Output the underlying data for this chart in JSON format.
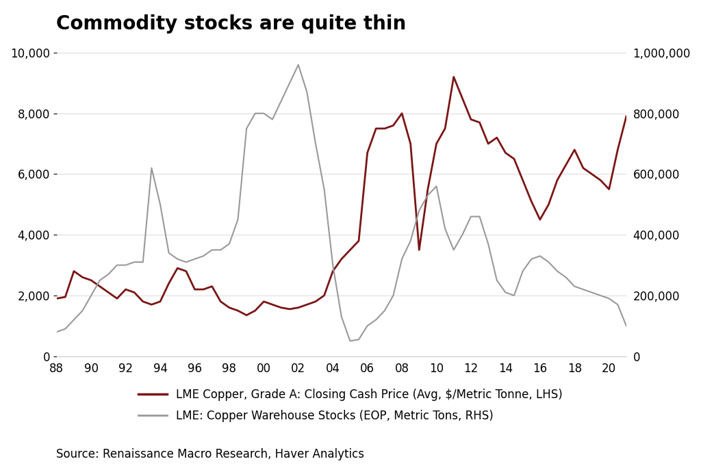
{
  "title": "Commodity stocks are quite thin",
  "source": "Source: Renaissance Macro Research, Haver Analytics",
  "legend_lhs": "LME Copper, Grade A: Closing Cash Price (Avg, $/Metric Tonne, LHS)",
  "legend_rhs": "LME: Copper Warehouse Stocks (EOP, Metric Tons, RHS)",
  "lhs_color": "#7B1515",
  "rhs_color": "#999999",
  "lhs_ylim": [
    0,
    10000
  ],
  "rhs_ylim": [
    0,
    1000000
  ],
  "lhs_yticks": [
    0,
    2000,
    4000,
    6000,
    8000,
    10000
  ],
  "rhs_yticks": [
    0,
    200000,
    400000,
    600000,
    800000,
    1000000
  ],
  "xlim": [
    1988,
    2021
  ],
  "xticks": [
    88,
    90,
    92,
    94,
    96,
    98,
    100,
    102,
    104,
    106,
    108,
    110,
    112,
    114,
    116,
    118,
    120
  ],
  "xtick_labels": [
    "88",
    "90",
    "92",
    "94",
    "96",
    "98",
    "00",
    "02",
    "04",
    "06",
    "08",
    "10",
    "12",
    "14",
    "16",
    "18",
    "20"
  ],
  "copper_price": {
    "years": [
      1988.0,
      1988.5,
      1989.0,
      1989.5,
      1990.0,
      1990.5,
      1991.0,
      1991.5,
      1992.0,
      1992.5,
      1993.0,
      1993.5,
      1994.0,
      1994.5,
      1995.0,
      1995.5,
      1996.0,
      1996.5,
      1997.0,
      1997.5,
      1998.0,
      1998.5,
      1999.0,
      1999.5,
      2000.0,
      2000.5,
      2001.0,
      2001.5,
      2002.0,
      2002.5,
      2003.0,
      2003.5,
      2004.0,
      2004.5,
      2005.0,
      2005.5,
      2006.0,
      2006.5,
      2007.0,
      2007.5,
      2008.0,
      2008.5,
      2009.0,
      2009.5,
      2010.0,
      2010.5,
      2011.0,
      2011.5,
      2012.0,
      2012.5,
      2013.0,
      2013.5,
      2014.0,
      2014.5,
      2015.0,
      2015.5,
      2016.0,
      2016.5,
      2017.0,
      2017.5,
      2018.0,
      2018.5,
      2019.0,
      2019.5,
      2020.0,
      2020.5,
      2021.0
    ],
    "values": [
      1900,
      1950,
      2800,
      2600,
      2500,
      2300,
      2100,
      1900,
      2200,
      2100,
      1800,
      1700,
      1800,
      2400,
      2900,
      2800,
      2200,
      2200,
      2300,
      1800,
      1600,
      1500,
      1350,
      1500,
      1800,
      1700,
      1600,
      1550,
      1600,
      1700,
      1800,
      2000,
      2800,
      3200,
      3500,
      3800,
      6700,
      7500,
      7500,
      7600,
      8000,
      7000,
      3500,
      5500,
      7000,
      7500,
      9200,
      8500,
      7800,
      7700,
      7000,
      7200,
      6700,
      6500,
      5800,
      5100,
      4500,
      5000,
      5800,
      6300,
      6800,
      6200,
      6000,
      5800,
      5500,
      6800,
      7900
    ],
    "linewidth": 2.0
  },
  "copper_stocks": {
    "years": [
      1988.0,
      1988.5,
      1989.0,
      1989.5,
      1990.0,
      1990.5,
      1991.0,
      1991.5,
      1992.0,
      1992.5,
      1993.0,
      1993.5,
      1994.0,
      1994.5,
      1995.0,
      1995.5,
      1996.0,
      1996.5,
      1997.0,
      1997.5,
      1998.0,
      1998.5,
      1999.0,
      1999.5,
      2000.0,
      2000.5,
      2001.0,
      2001.5,
      2002.0,
      2002.5,
      2003.0,
      2003.5,
      2004.0,
      2004.5,
      2005.0,
      2005.5,
      2006.0,
      2006.5,
      2007.0,
      2007.5,
      2008.0,
      2008.5,
      2009.0,
      2009.5,
      2010.0,
      2010.5,
      2011.0,
      2011.5,
      2012.0,
      2012.5,
      2013.0,
      2013.5,
      2014.0,
      2014.5,
      2015.0,
      2015.5,
      2016.0,
      2016.5,
      2017.0,
      2017.5,
      2018.0,
      2018.5,
      2019.0,
      2019.5,
      2020.0,
      2020.5,
      2021.0
    ],
    "values": [
      80000,
      90000,
      120000,
      150000,
      200000,
      250000,
      270000,
      300000,
      300000,
      310000,
      310000,
      620000,
      500000,
      340000,
      320000,
      310000,
      320000,
      330000,
      350000,
      350000,
      370000,
      450000,
      750000,
      800000,
      800000,
      780000,
      840000,
      900000,
      960000,
      870000,
      700000,
      550000,
      300000,
      130000,
      50000,
      55000,
      100000,
      120000,
      150000,
      200000,
      320000,
      380000,
      480000,
      530000,
      560000,
      420000,
      350000,
      400000,
      460000,
      460000,
      370000,
      250000,
      210000,
      200000,
      280000,
      320000,
      330000,
      310000,
      280000,
      260000,
      230000,
      220000,
      210000,
      200000,
      190000,
      170000,
      100000
    ],
    "linewidth": 1.5
  },
  "background_color": "#ffffff",
  "title_fontsize": 20,
  "tick_fontsize": 12,
  "legend_fontsize": 12,
  "source_fontsize": 12
}
